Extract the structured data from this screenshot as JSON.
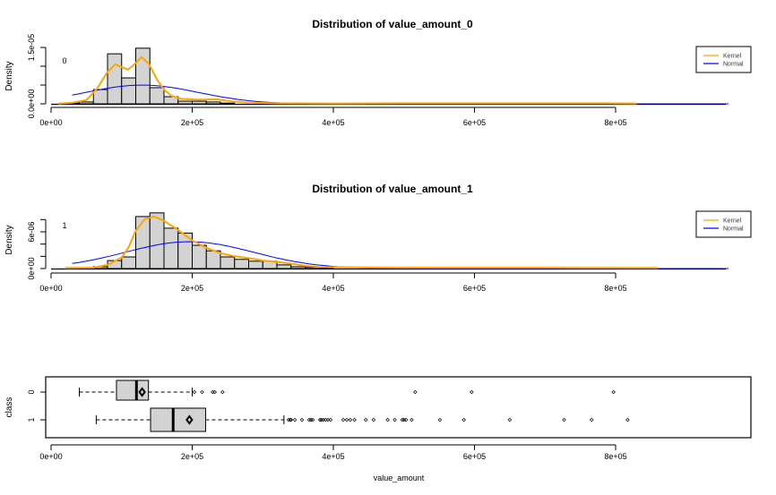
{
  "chart_data": [
    {
      "type": "histogram",
      "title": "Distribution of value_amount_0",
      "ylabel": "Density",
      "panel_label": "0",
      "bin_width": 20000,
      "xlim": [
        0,
        900000
      ],
      "x_ticks": [
        "0e+00",
        "2e+05",
        "4e+05",
        "6e+05",
        "8e+05"
      ],
      "x_tick_values": [
        0,
        200000,
        400000,
        600000,
        800000
      ],
      "y_ticks": [
        0,
        5e-06,
        1e-05,
        1.5e-05
      ],
      "y_tick_labels": [
        "0.0e+00",
        "",
        "",
        "1.5e-05"
      ],
      "bins": [
        {
          "start": 20000,
          "density": 2e-07
        },
        {
          "start": 40000,
          "density": 5e-07
        },
        {
          "start": 60000,
          "density": 3.8e-06
        },
        {
          "start": 80000,
          "density": 1.33e-05
        },
        {
          "start": 100000,
          "density": 6.9e-06
        },
        {
          "start": 120000,
          "density": 1.48e-05
        },
        {
          "start": 140000,
          "density": 4.3e-06
        },
        {
          "start": 160000,
          "density": 1.9e-06
        },
        {
          "start": 180000,
          "density": 7e-07
        },
        {
          "start": 200000,
          "density": 7e-07
        },
        {
          "start": 220000,
          "density": 5e-07
        },
        {
          "start": 240000,
          "density": 2e-07
        }
      ],
      "kernel": [
        [
          10000,
          5e-08
        ],
        [
          30000,
          3e-07
        ],
        [
          50000,
          1e-06
        ],
        [
          65000,
          4e-06
        ],
        [
          80000,
          8.5e-06
        ],
        [
          91000,
          1.05e-05
        ],
        [
          100000,
          9.8e-06
        ],
        [
          109000,
          9.1e-06
        ],
        [
          118000,
          1.05e-05
        ],
        [
          128000,
          1.24e-05
        ],
        [
          138000,
          1.08e-05
        ],
        [
          150000,
          6.5e-06
        ],
        [
          160000,
          3.8e-06
        ],
        [
          170000,
          2.2e-06
        ],
        [
          185000,
          1.3e-06
        ],
        [
          210000,
          1.1e-06
        ],
        [
          235000,
          1.2e-06
        ],
        [
          255000,
          7e-07
        ],
        [
          280000,
          3e-07
        ],
        [
          320000,
          1.5e-07
        ],
        [
          400000,
          1e-07
        ],
        [
          500000,
          1.5e-07
        ],
        [
          530000,
          1.5e-07
        ],
        [
          600000,
          1.5e-07
        ],
        [
          780000,
          1.5e-07
        ],
        [
          830000,
          1e-07
        ]
      ],
      "normal": {
        "mean": 129000,
        "sd": 80000,
        "from": 30000,
        "to": 960000
      },
      "legend": {
        "position": "top-right",
        "entries": [
          {
            "label": "Kernel",
            "color": "#FFA500"
          },
          {
            "label": "Normal",
            "color": "#0000FF"
          }
        ]
      }
    },
    {
      "type": "histogram",
      "title": "Distribution of value_amount_1",
      "ylabel": "Density",
      "panel_label": "1",
      "bin_width": 20000,
      "xlim": [
        0,
        900000
      ],
      "x_ticks": [
        "0e+00",
        "2e+05",
        "4e+05",
        "6e+05",
        "8e+05"
      ],
      "x_tick_values": [
        0,
        200000,
        400000,
        600000,
        800000
      ],
      "y_ticks": [
        0,
        2e-06,
        4e-06,
        6e-06,
        8e-06
      ],
      "y_tick_labels": [
        "0e+00",
        "",
        "",
        "6e-06",
        ""
      ],
      "bins": [
        {
          "start": 60000,
          "density": 3e-07
        },
        {
          "start": 80000,
          "density": 1.3e-06
        },
        {
          "start": 100000,
          "density": 1.9e-06
        },
        {
          "start": 120000,
          "density": 8.5e-06
        },
        {
          "start": 140000,
          "density": 9.1e-06
        },
        {
          "start": 160000,
          "density": 6.6e-06
        },
        {
          "start": 180000,
          "density": 5.8e-06
        },
        {
          "start": 200000,
          "density": 3.8e-06
        },
        {
          "start": 220000,
          "density": 2.9e-06
        },
        {
          "start": 240000,
          "density": 1.9e-06
        },
        {
          "start": 260000,
          "density": 1.5e-06
        },
        {
          "start": 280000,
          "density": 1.2e-06
        },
        {
          "start": 300000,
          "density": 1.2e-06
        },
        {
          "start": 320000,
          "density": 6e-07
        },
        {
          "start": 340000,
          "density": 3e-07
        },
        {
          "start": 360000,
          "density": 2e-07
        },
        {
          "start": 380000,
          "density": 1.5e-07
        }
      ],
      "kernel": [
        [
          20000,
          1e-07
        ],
        [
          60000,
          1.5e-07
        ],
        [
          80000,
          6e-07
        ],
        [
          100000,
          1.8e-06
        ],
        [
          110000,
          3.5e-06
        ],
        [
          120000,
          6.2e-06
        ],
        [
          133000,
          8.1e-06
        ],
        [
          146000,
          8.5e-06
        ],
        [
          160000,
          7.8e-06
        ],
        [
          180000,
          6.3e-06
        ],
        [
          200000,
          4.6e-06
        ],
        [
          220000,
          3.4e-06
        ],
        [
          240000,
          2.5e-06
        ],
        [
          260000,
          2e-06
        ],
        [
          280000,
          1.7e-06
        ],
        [
          300000,
          1.3e-06
        ],
        [
          320000,
          1.1e-06
        ],
        [
          340000,
          8e-07
        ],
        [
          360000,
          4.5e-07
        ],
        [
          380000,
          2.5e-07
        ],
        [
          420000,
          2e-07
        ],
        [
          500000,
          1.5e-07
        ],
        [
          700000,
          1.5e-07
        ],
        [
          860000,
          1e-07
        ]
      ],
      "normal": {
        "mean": 196000,
        "sd": 91000,
        "from": 30000,
        "to": 960000
      },
      "legend": {
        "position": "top-right",
        "entries": [
          {
            "label": "Kernel",
            "color": "#FFA500"
          },
          {
            "label": "Normal",
            "color": "#0000FF"
          }
        ]
      }
    },
    {
      "type": "boxplot",
      "xlabel": "value_amount",
      "ylabel": "class",
      "x_ticks": [
        "0e+00",
        "2e+05",
        "4e+05",
        "6e+05",
        "8e+05"
      ],
      "x_tick_values": [
        0,
        200000,
        400000,
        600000,
        800000
      ],
      "groups": [
        {
          "name": "0",
          "whisker_low": 40000,
          "q1": 92700,
          "median": 121000,
          "q3": 138000,
          "whisker_high": 200000,
          "mean": 129000,
          "outliers": [
            203000,
            214000,
            229000,
            232000,
            243000,
            516000,
            596000,
            797000
          ]
        },
        {
          "name": "1",
          "whisker_low": 64000,
          "q1": 141000,
          "median": 173000,
          "q3": 219000,
          "whisker_high": 330000,
          "mean": 196000,
          "outliers": [
            336500,
            339000,
            340000,
            345500,
            355600,
            365700,
            368300,
            370800,
            381000,
            383000,
            385700,
            389000,
            392400,
            396000,
            414000,
            419000,
            424000,
            430000,
            446000,
            457000,
            477000,
            487000,
            497700,
            500000,
            503000,
            511000,
            551000,
            585000,
            650000,
            727000,
            766000,
            817000
          ]
        }
      ]
    }
  ]
}
